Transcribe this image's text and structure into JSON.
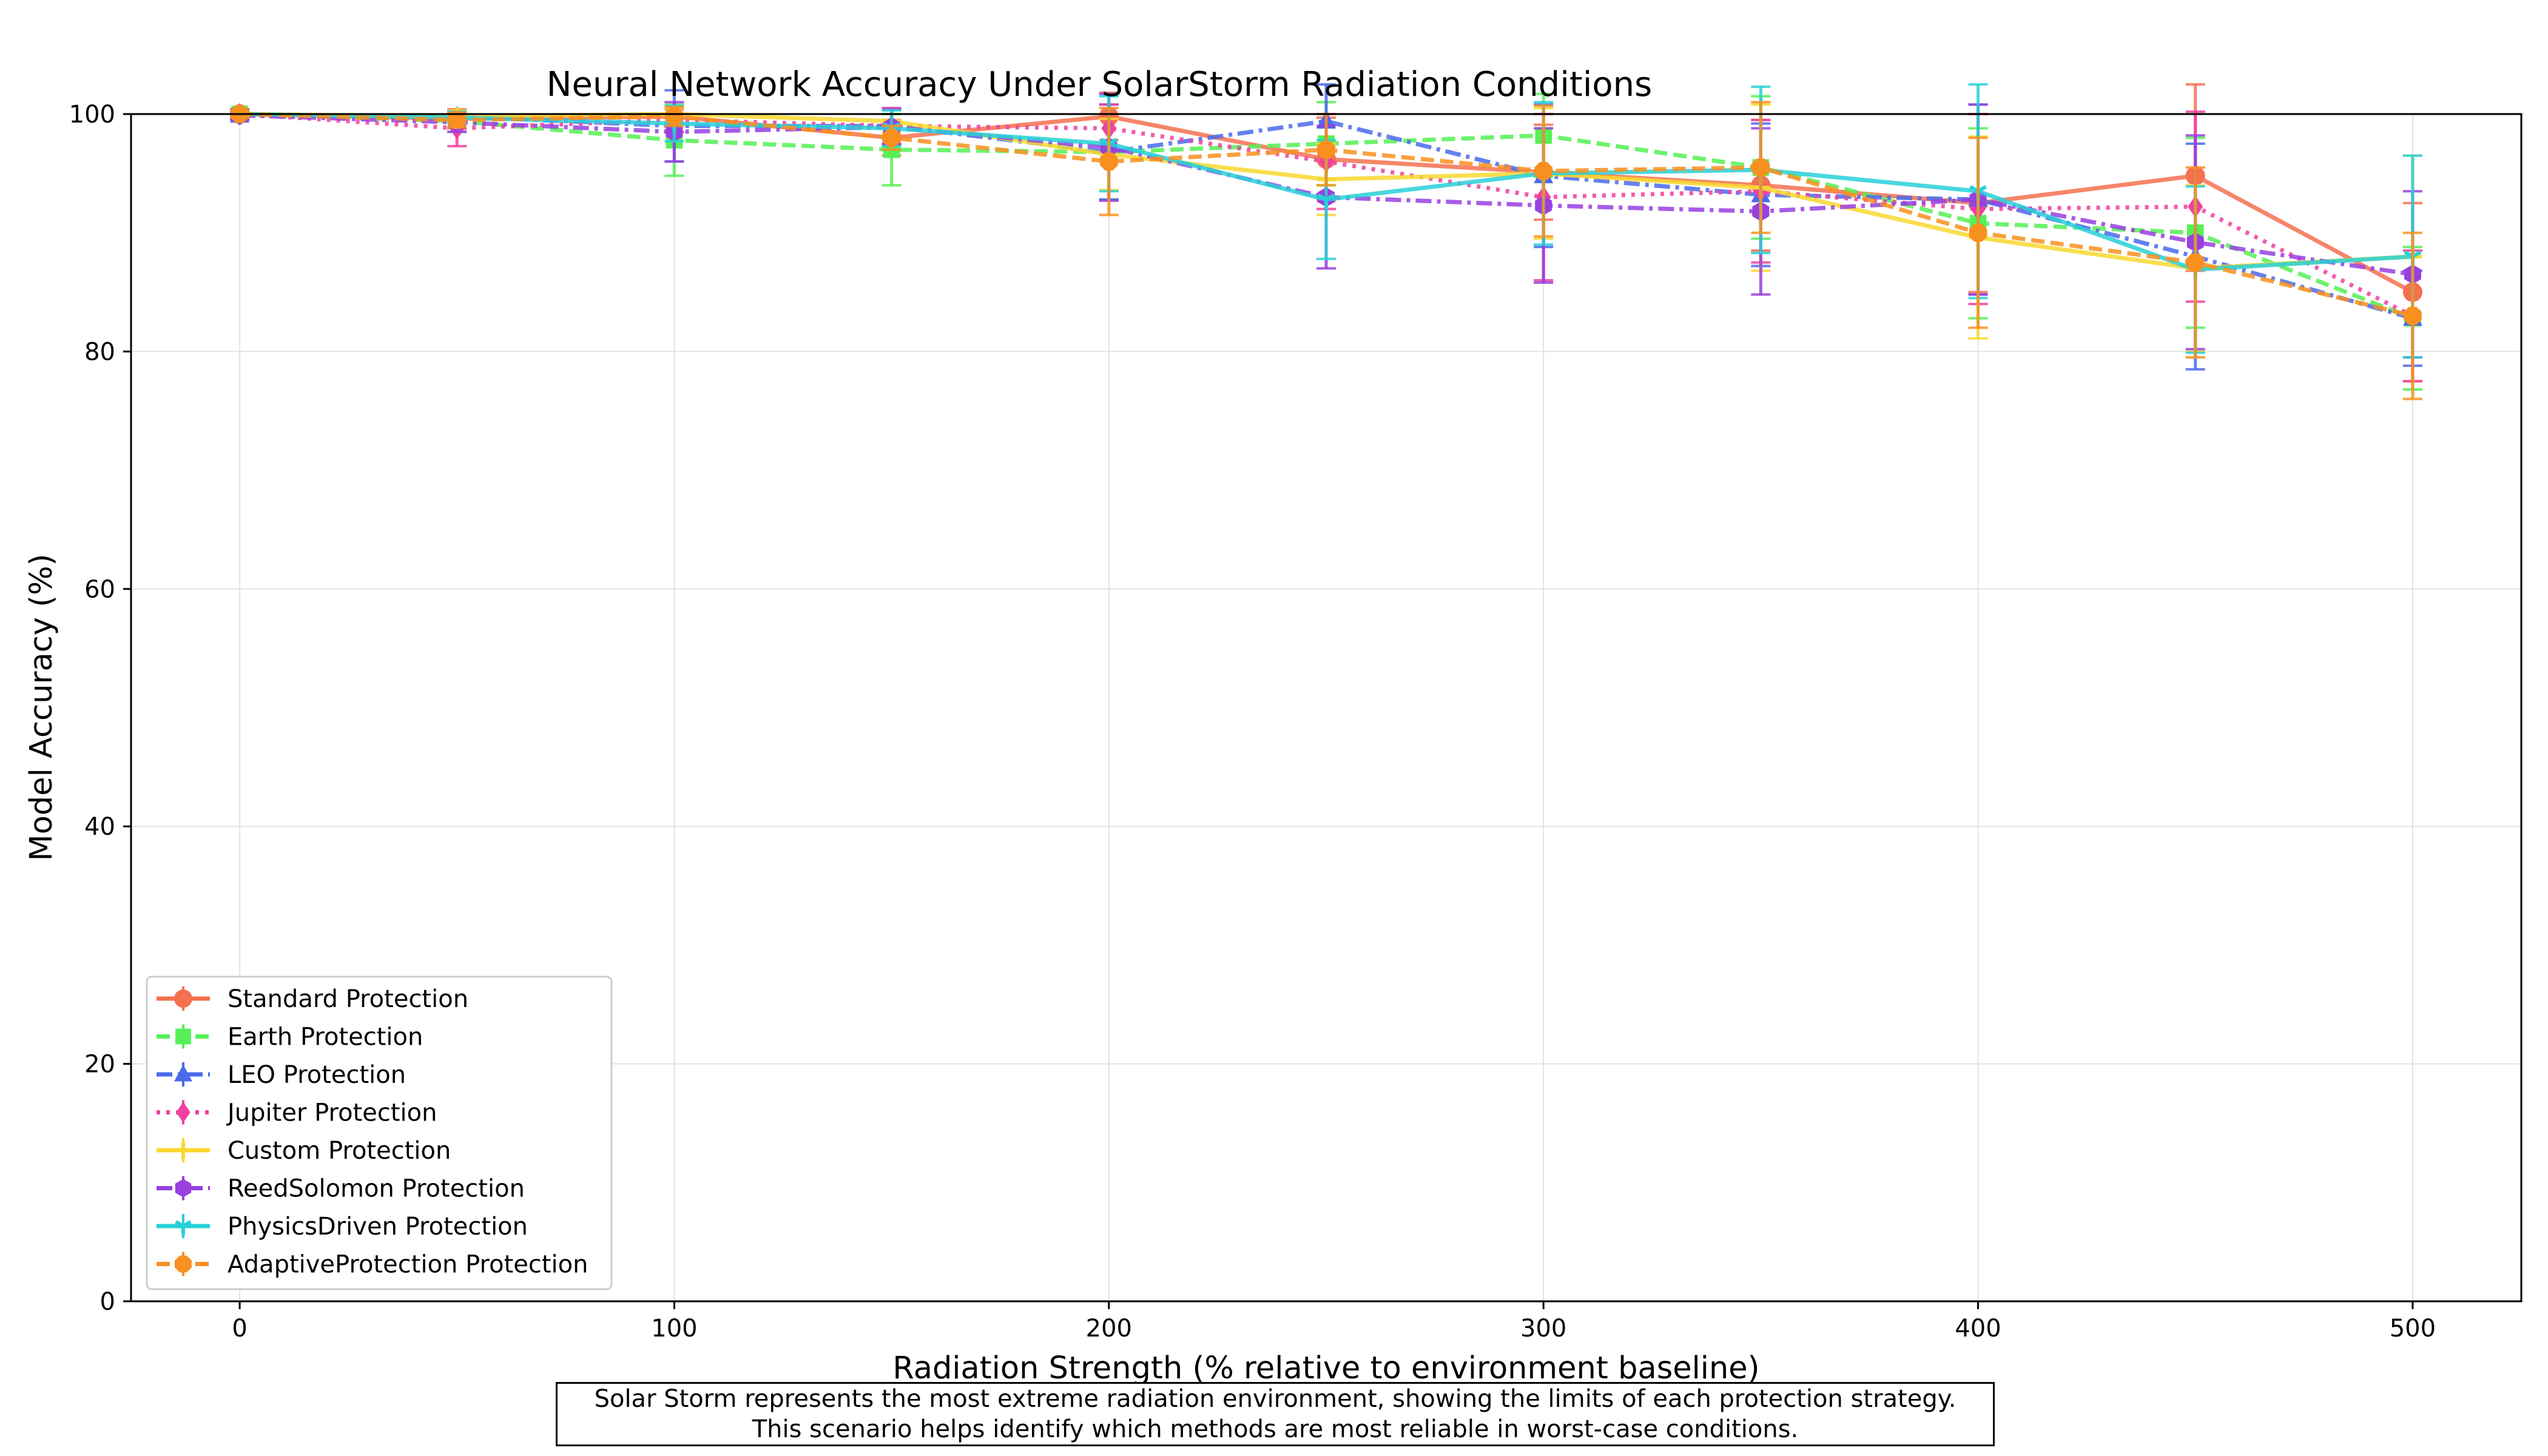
{
  "chart_data": {
    "type": "line",
    "title": "Neural Network Accuracy Under SolarStorm Radiation Conditions",
    "xlabel": "Radiation Strength (% relative to environment baseline)",
    "ylabel": "Model Accuracy (%)",
    "xlim": [
      -25,
      525
    ],
    "ylim": [
      0,
      100
    ],
    "xticks": [
      0,
      100,
      200,
      300,
      400,
      500
    ],
    "yticks": [
      0,
      20,
      40,
      60,
      80,
      100
    ],
    "grid": true,
    "legend_position": "lower-left",
    "x": [
      0,
      50,
      100,
      150,
      200,
      250,
      300,
      350,
      400,
      450,
      500
    ],
    "series": [
      {
        "name": "Standard Protection",
        "color": "#f4704f",
        "dash": "solid",
        "marker": "circle",
        "values": [
          100.0,
          99.6,
          99.8,
          98.0,
          99.8,
          96.2,
          95.1,
          94.0,
          92.5,
          94.8,
          85.0
        ],
        "errors": [
          0.3,
          0.8,
          0.6,
          1.5,
          2.0,
          3.5,
          4.0,
          5.5,
          7.5,
          8.0,
          7.5
        ]
      },
      {
        "name": "Earth Protection",
        "color": "#55f055",
        "dash": "dashed",
        "marker": "square",
        "values": [
          100.0,
          99.4,
          97.8,
          97.0,
          96.8,
          97.5,
          98.2,
          95.5,
          90.8,
          90.0,
          82.8
        ],
        "errors": [
          0.4,
          0.9,
          3.0,
          3.0,
          4.0,
          3.5,
          3.5,
          6.0,
          8.0,
          8.0,
          6.0
        ]
      },
      {
        "name": "LEO Protection",
        "color": "#4a6aec",
        "dash": "dashdot",
        "marker": "triangle",
        "values": [
          99.9,
          99.8,
          99.0,
          99.0,
          96.8,
          99.4,
          94.8,
          93.2,
          92.8,
          88.0,
          82.8
        ],
        "errors": [
          0.3,
          0.5,
          3.0,
          1.5,
          4.0,
          6.5,
          6.0,
          6.0,
          8.0,
          9.5,
          4.0
        ]
      },
      {
        "name": "Jupiter Protection",
        "color": "#f040a0",
        "dash": "dotted",
        "marker": "diamond",
        "values": [
          100.0,
          98.8,
          99.5,
          99.0,
          98.8,
          96.0,
          93.0,
          93.5,
          92.0,
          92.2,
          83.0
        ],
        "errors": [
          0.4,
          1.5,
          1.0,
          1.5,
          2.0,
          4.0,
          7.0,
          6.0,
          8.0,
          8.0,
          5.5
        ]
      },
      {
        "name": "Custom Protection",
        "color": "#f8d830",
        "dash": "solid",
        "marker": "plus",
        "values": [
          100.0,
          99.8,
          100.0,
          99.4,
          96.6,
          94.5,
          95.0,
          93.8,
          89.6,
          87.0,
          88.0
        ],
        "errors": [
          0.3,
          0.5,
          0.5,
          1.0,
          3.0,
          3.0,
          5.5,
          7.0,
          8.5,
          7.0,
          8.5
        ]
      },
      {
        "name": "ReedSolomon Protection",
        "color": "#9840e0",
        "dash": "dashdot",
        "marker": "hexagon",
        "values": [
          99.9,
          99.3,
          98.5,
          98.9,
          97.2,
          93.0,
          92.3,
          91.8,
          92.8,
          89.2,
          86.5
        ],
        "errors": [
          0.4,
          0.8,
          2.5,
          1.5,
          4.5,
          6.0,
          6.5,
          7.0,
          8.0,
          9.0,
          7.0
        ]
      },
      {
        "name": "PhysicsDriven Protection",
        "color": "#28d0d8",
        "dash": "solid",
        "marker": "tri_down",
        "values": [
          100.0,
          99.7,
          99.2,
          98.8,
          97.5,
          92.8,
          95.0,
          95.3,
          93.5,
          86.9,
          88.0
        ],
        "errors": [
          0.3,
          0.5,
          1.5,
          1.5,
          4.0,
          5.0,
          6.0,
          7.0,
          9.0,
          7.0,
          8.5
        ]
      },
      {
        "name": "AdaptiveProtection Protection",
        "color": "#f89020",
        "dash": "dashed",
        "marker": "octagon",
        "values": [
          100.0,
          99.5,
          99.8,
          98.0,
          96.0,
          97.0,
          95.2,
          95.5,
          90.0,
          87.5,
          83.0
        ],
        "errors": [
          0.3,
          0.6,
          0.8,
          1.0,
          4.5,
          3.0,
          5.5,
          5.5,
          8.0,
          8.0,
          7.0
        ]
      }
    ]
  },
  "caption": {
    "line1": "Solar Storm represents the most extreme radiation environment, showing the limits of each protection strategy.",
    "line2": "This scenario helps identify which methods are most reliable in worst-case conditions."
  }
}
